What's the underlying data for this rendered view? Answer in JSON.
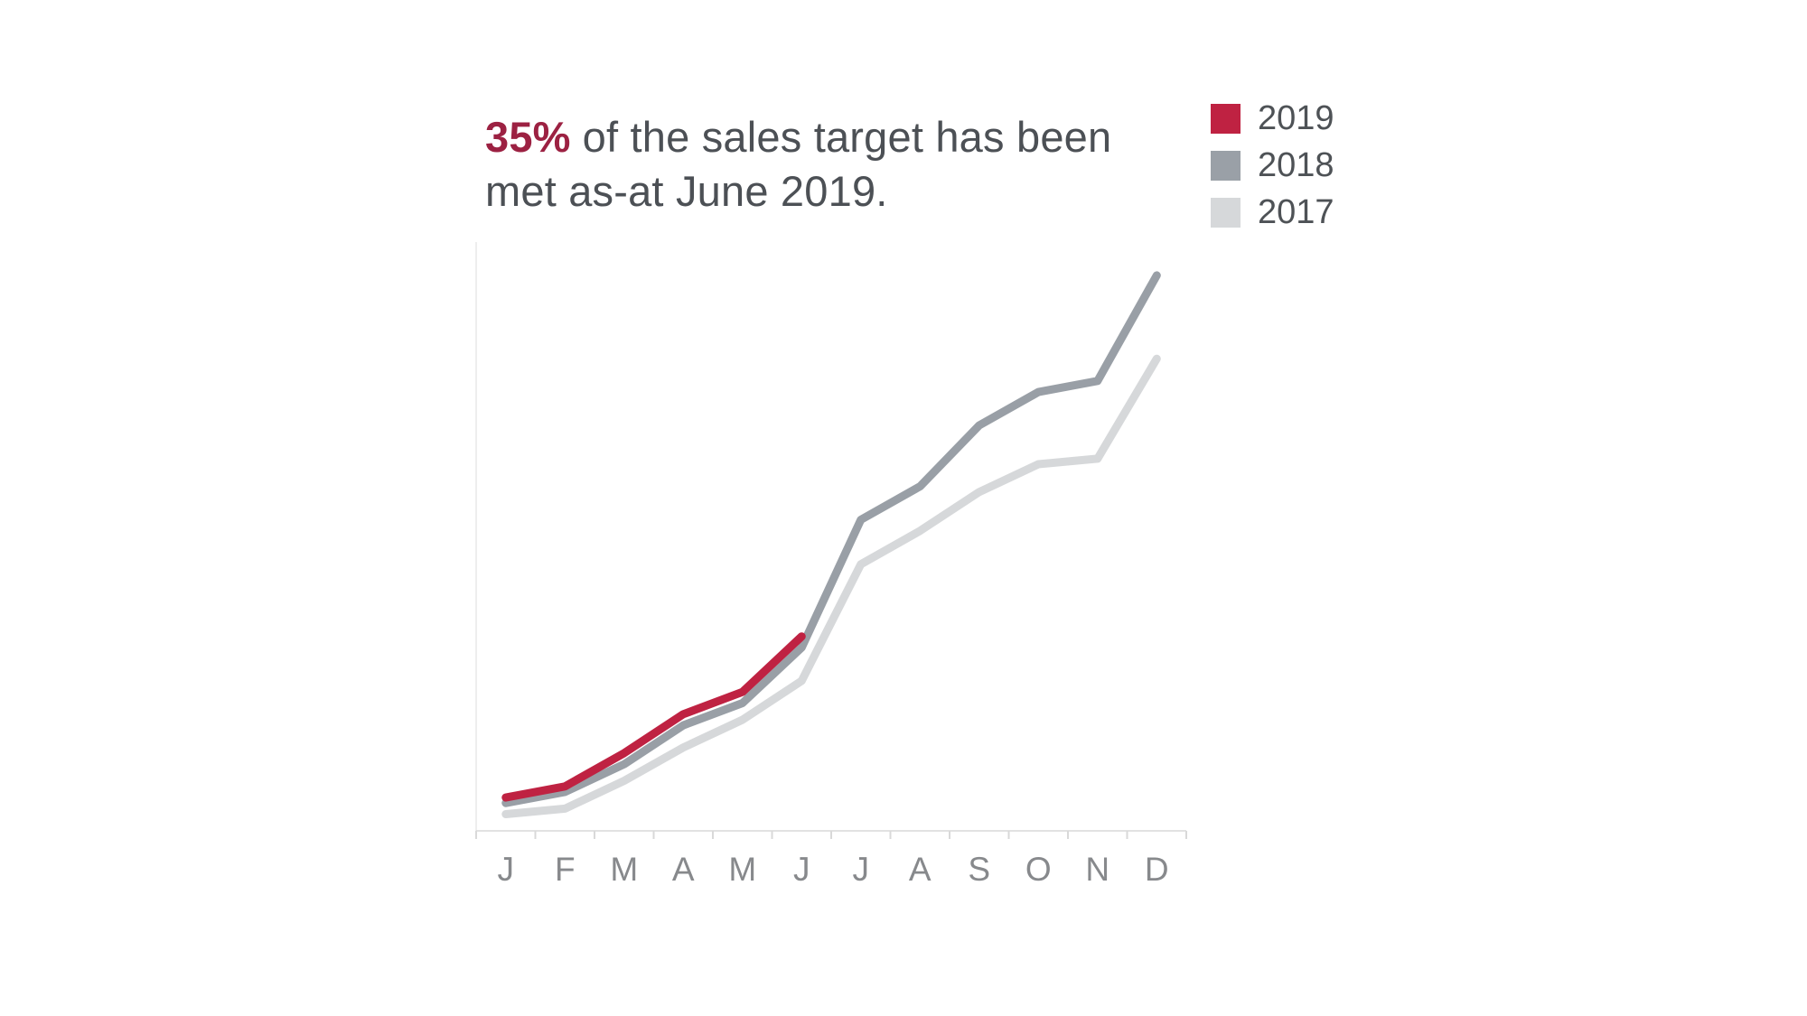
{
  "page": {
    "background_color": "#ffffff"
  },
  "headline": {
    "accent": "35%",
    "line1_rest": "of the sales target has been",
    "line2": "met as-at June 2019.",
    "accent_color": "#9c2142",
    "text_color": "#4c5055"
  },
  "legend": {
    "label_color": "#4e5256",
    "items": [
      {
        "label": "2019",
        "color": "#bf2242"
      },
      {
        "label": "2018",
        "color": "#9aa0a7"
      },
      {
        "label": "2017",
        "color": "#d6d8da"
      }
    ]
  },
  "chart_data": {
    "type": "line",
    "title": "35% of the sales target has been met as-at June 2019.",
    "x": [
      "Jan",
      "Feb",
      "Mar",
      "Apr",
      "May",
      "Jun",
      "Jul",
      "Aug",
      "Sep",
      "Oct",
      "Nov",
      "Dec"
    ],
    "x_tick_labels": [
      "J",
      "F",
      "M",
      "A",
      "M",
      "J",
      "J",
      "A",
      "S",
      "O",
      "N",
      "D"
    ],
    "xlabel": "",
    "ylabel": "",
    "ylim": [
      0,
      106
    ],
    "grid": false,
    "y_axis_labels_shown": false,
    "legend_position": "top-right",
    "series": [
      {
        "name": "2017",
        "color": "#d6d8da",
        "values": [
          3,
          4,
          9,
          15,
          20,
          27,
          48,
          54,
          61,
          66,
          67,
          85
        ]
      },
      {
        "name": "2018",
        "color": "#999fa6",
        "values": [
          5,
          7,
          12,
          19,
          23,
          33,
          56,
          62,
          73,
          79,
          81,
          100
        ]
      },
      {
        "name": "2019",
        "color": "#bf2242",
        "values": [
          6,
          8,
          14,
          21,
          25,
          35
        ]
      }
    ],
    "annotation": "2019 line ends at June at 35% of the sales target",
    "axis_line_color": "#e9e9e9",
    "tick_color": "#d9d9d9",
    "tick_label_color": "#87898c"
  }
}
